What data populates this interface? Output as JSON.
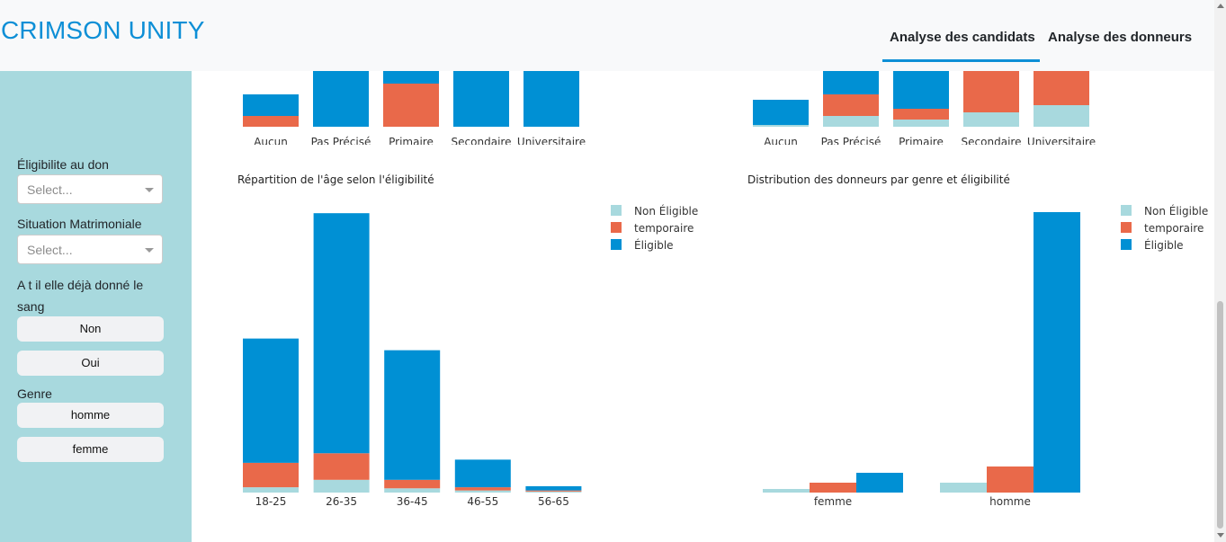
{
  "app": {
    "title": "CRIMSON UNITY"
  },
  "tabs": [
    {
      "label": "Analyse des candidats",
      "active": true
    },
    {
      "label": "Analyse des donneurs",
      "active": false
    }
  ],
  "sidebar": {
    "eligibility_label": "Éligibilite au don",
    "eligibility_placeholder": "Select...",
    "marital_label": "Situation Matrimoniale",
    "marital_placeholder": "Select...",
    "donated_label_line1": "A t il elle déjà donné le",
    "donated_label_line2": "sang",
    "donated_options": [
      "Non",
      "Oui"
    ],
    "genre_label": "Genre",
    "genre_options": [
      "homme",
      "femme"
    ]
  },
  "colors": {
    "non_eligible": "#a8d9de",
    "temporaire": "#e9694a",
    "eligible": "#0090d4",
    "accent": "#0d8fd6"
  },
  "legend": [
    "Non Éligible",
    "temporaire",
    "Éligible"
  ],
  "chart_data": [
    {
      "type": "bar",
      "stacked": true,
      "title": "",
      "categories": [
        "Aucun",
        "Pas Précisé",
        "Primaire",
        "Secondaire",
        "Universitaire"
      ],
      "series": [
        {
          "name": "Non Éligible",
          "values": [
            0,
            0,
            0,
            0,
            0
          ]
        },
        {
          "name": "temporaire",
          "values": [
            2,
            0,
            8,
            0,
            0
          ]
        },
        {
          "name": "Éligible",
          "values": [
            4,
            20,
            11,
            20,
            20
          ]
        }
      ],
      "ylim": [
        0,
        20
      ],
      "note": "top clipped by scroll"
    },
    {
      "type": "bar",
      "stacked": true,
      "title": "",
      "categories": [
        "Aucun",
        "Pas Précisé",
        "Primaire",
        "Secondaire",
        "Universitaire"
      ],
      "series": [
        {
          "name": "Non Éligible",
          "values": [
            0.5,
            3,
            2,
            4,
            6
          ]
        },
        {
          "name": "temporaire",
          "values": [
            0,
            6,
            3,
            14,
            13
          ]
        },
        {
          "name": "Éligible",
          "values": [
            7,
            16,
            19,
            8,
            6
          ]
        }
      ],
      "ylim": [
        0,
        25
      ]
    },
    {
      "type": "bar",
      "stacked": true,
      "title": "Répartition de l'âge selon l'éligibilité",
      "categories": [
        "18-25",
        "26-35",
        "36-45",
        "46-55",
        "56-65"
      ],
      "series": [
        {
          "name": "Non Éligible",
          "values": [
            5,
            12,
            4,
            2,
            1
          ]
        },
        {
          "name": "temporaire",
          "values": [
            23,
            25,
            8,
            3,
            1
          ]
        },
        {
          "name": "Éligible",
          "values": [
            117,
            226,
            122,
            26,
            4
          ]
        }
      ],
      "ylim": [
        0,
        264
      ]
    },
    {
      "type": "bar",
      "stacked": false,
      "title": "Distribution des donneurs par genre et éligibilité",
      "categories": [
        "femme",
        "homme"
      ],
      "series": [
        {
          "name": "Non Éligible",
          "values": [
            4,
            11
          ]
        },
        {
          "name": "temporaire",
          "values": [
            11,
            29
          ]
        },
        {
          "name": "Éligible",
          "values": [
            22,
            312
          ]
        }
      ],
      "ylim": [
        0,
        312
      ]
    }
  ]
}
